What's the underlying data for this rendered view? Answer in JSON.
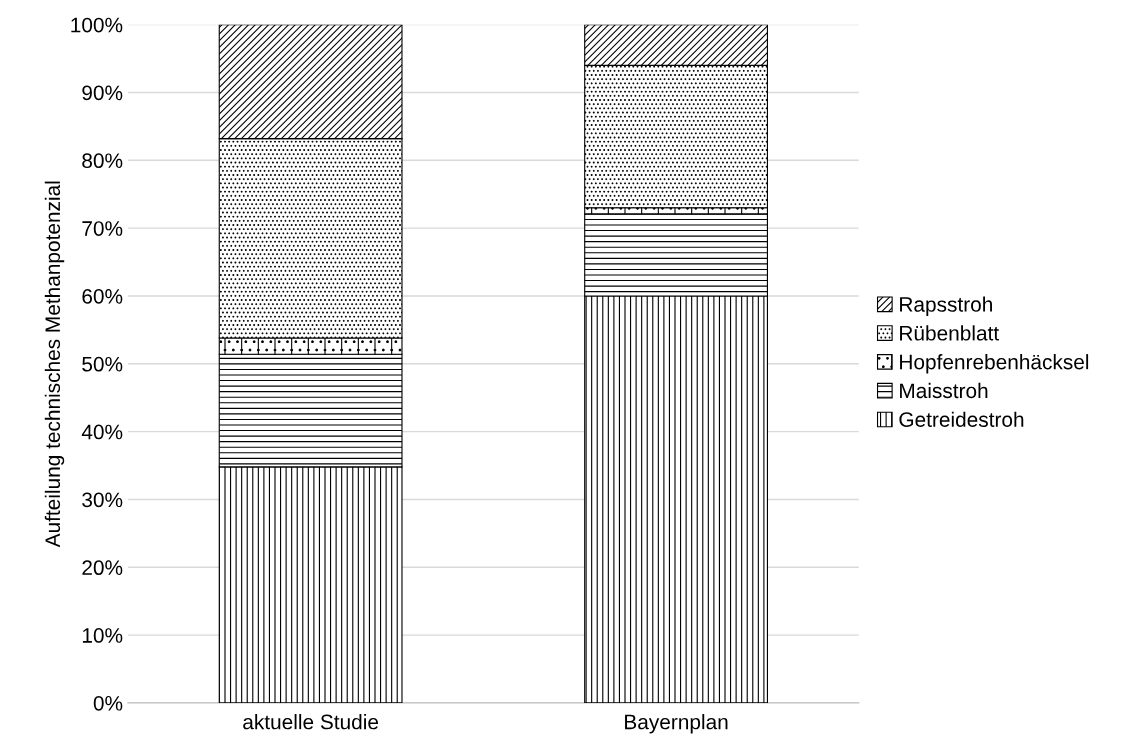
{
  "chart_data": {
    "type": "bar",
    "stacked": true,
    "ylabel": "Aufteilung technisches Methanpotenzial",
    "categories": [
      "aktuelle Studie",
      "Bayernplan"
    ],
    "series": [
      {
        "name": "Getreidestroh",
        "color": "#000000",
        "values": [
          34.8,
          60.0
        ]
      },
      {
        "name": "Maisstroh",
        "color": "#000000",
        "values": [
          16.6,
          12.1
        ]
      },
      {
        "name": "Hopfenrebenhäcksel",
        "color": "#000000",
        "values": [
          2.4,
          0.9
        ]
      },
      {
        "name": "Rübenblatt",
        "color": "#000000",
        "values": [
          29.4,
          21.0
        ]
      },
      {
        "name": "Rapsstroh",
        "color": "#000000",
        "values": [
          16.8,
          6.0
        ]
      }
    ],
    "ylim": [
      0,
      100
    ],
    "yticks": [
      {
        "value": 0,
        "label": "0%"
      },
      {
        "value": 10,
        "label": "10%"
      },
      {
        "value": 20,
        "label": "20%"
      },
      {
        "value": 30,
        "label": "30%"
      },
      {
        "value": 40,
        "label": "40%"
      },
      {
        "value": 50,
        "label": "50%"
      },
      {
        "value": 60,
        "label": "60%"
      },
      {
        "value": 70,
        "label": "70%"
      },
      {
        "value": 80,
        "label": "80%"
      },
      {
        "value": 90,
        "label": "90%"
      },
      {
        "value": 100,
        "label": "100%"
      }
    ],
    "grid": "y",
    "legend": "right"
  }
}
